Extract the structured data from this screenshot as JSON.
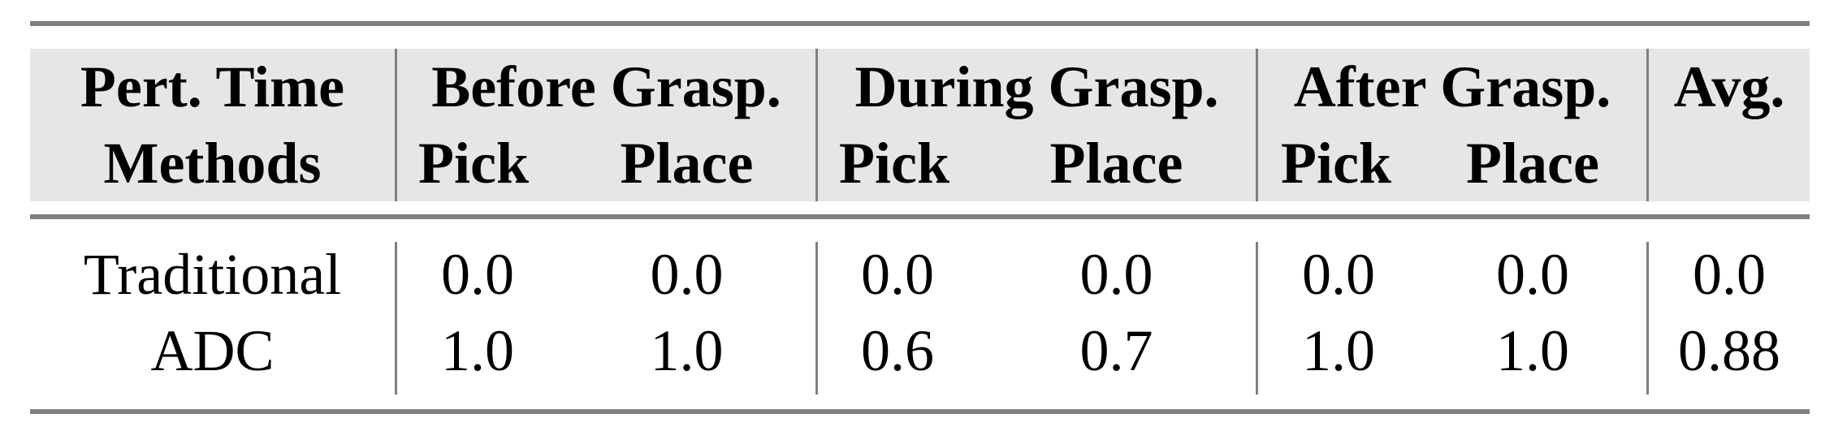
{
  "table": {
    "header_row1": [
      "Pert. Time",
      "Before Grasp.",
      "During Grasp.",
      "After Grasp.",
      "Avg."
    ],
    "header_row2": [
      "Methods",
      "Pick",
      "Place",
      "Pick",
      "Place",
      "Pick",
      "Place",
      ""
    ],
    "rows": [
      {
        "method": "Traditional",
        "values": [
          "0.0",
          "0.0",
          "0.0",
          "0.0",
          "0.0",
          "0.0",
          "0.0"
        ]
      },
      {
        "method": "ADC",
        "values": [
          "1.0",
          "1.0",
          "0.6",
          "0.7",
          "1.0",
          "1.0",
          "0.88"
        ]
      }
    ],
    "colors": {
      "header_bg": "#e6e6e6",
      "rule": "#808080"
    }
  }
}
